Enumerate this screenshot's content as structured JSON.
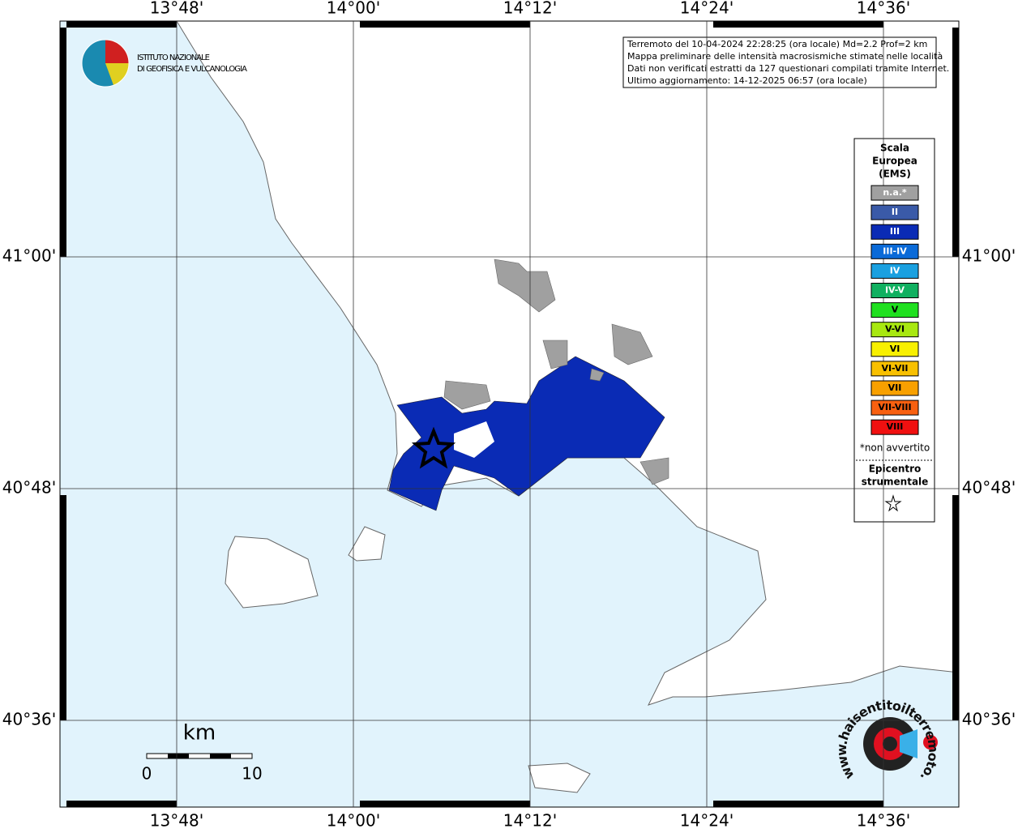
{
  "map": {
    "lon_labels": [
      "13°48'",
      "14°00'",
      "14°12'",
      "14°24'",
      "14°36'"
    ],
    "lat_labels": [
      "41°00'",
      "40°48'",
      "40°36'"
    ],
    "info": [
      "Terremoto del 10-04-2024 22:28:25 (ora locale) Md=2.2 Prof=2 km",
      "Mappa preliminare delle intensità macrosismiche stimate nelle località",
      "Dati non verificati estratti da 127 questionari compilati tramite Internet.",
      "Ultimo aggiornamento: 14-12-2025 06:57 (ora locale)"
    ],
    "legend": {
      "title": [
        "Scala",
        "Europea",
        "(EMS)"
      ],
      "items": [
        {
          "label": "n.a.*",
          "color": "#a0a0a0"
        },
        {
          "label": "II",
          "color": "#3a5aa8"
        },
        {
          "label": "III",
          "color": "#0a2bb5"
        },
        {
          "label": "III-IV",
          "color": "#0a6ad8"
        },
        {
          "label": "IV",
          "color": "#1aa0e0"
        },
        {
          "label": "IV-V",
          "color": "#10b060"
        },
        {
          "label": "V",
          "color": "#20e020"
        },
        {
          "label": "V-VI",
          "color": "#a8e810"
        },
        {
          "label": "VI",
          "color": "#f8f000"
        },
        {
          "label": "VI-VII",
          "color": "#f8c000"
        },
        {
          "label": "VII",
          "color": "#f8a000"
        },
        {
          "label": "VII-VIII",
          "color": "#f86010"
        },
        {
          "label": "VIII",
          "color": "#f01010"
        }
      ],
      "note": "*non avvertito",
      "epicenter_title": [
        "Epicentro",
        "strumentale"
      ]
    },
    "scale": {
      "unit": "km",
      "labels": [
        "0",
        "10"
      ]
    },
    "logo": [
      "ISTITUTO NAZIONALE",
      "DI GEOFISICA E VULCANOLOGIA"
    ],
    "badge": "www.haisentitoilterremoto.it"
  }
}
